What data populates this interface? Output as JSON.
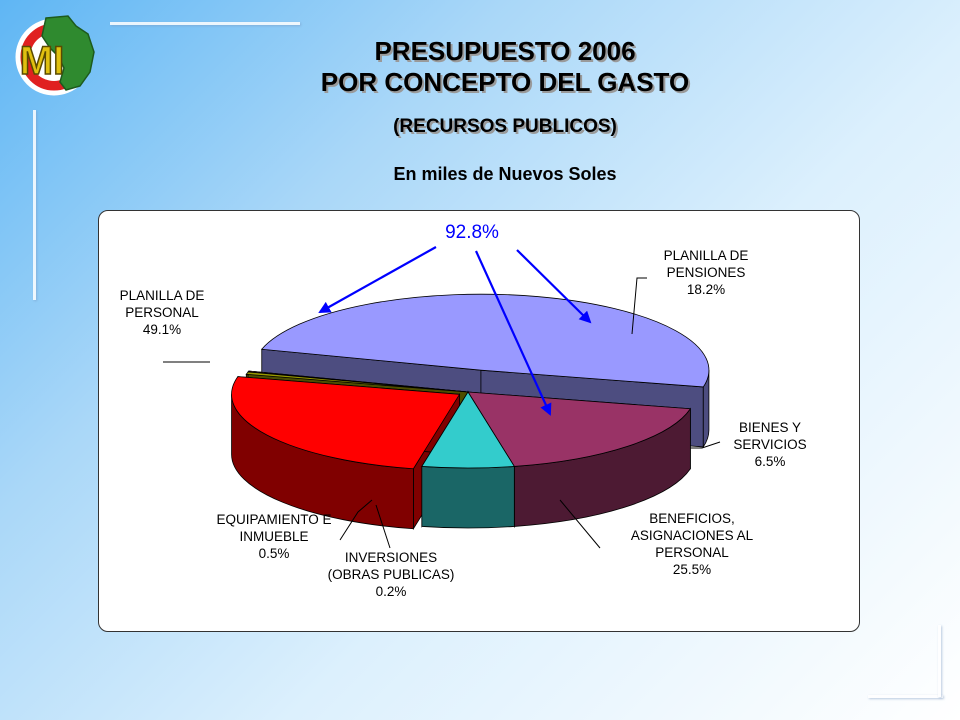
{
  "header": {
    "title_line1": "PRESUPUESTO 2006",
    "title_line2": "POR CONCEPTO DEL GASTO",
    "subtitle": "(RECURSOS PUBLICOS)",
    "units_note": "En miles de Nuevos Soles"
  },
  "logo": {
    "text": "MI"
  },
  "colors": {
    "personal": "#9999ff",
    "pensiones": "#993366",
    "bienes": "#33cccc",
    "beneficios": "#ff0000",
    "inversiones": "#ff9999",
    "equipamiento": "#999900",
    "highlight": "#0000ff"
  },
  "chart_data": {
    "type": "pie",
    "title": "PRESUPUESTO 2006 POR CONCEPTO DEL GASTO",
    "units": "En miles de Nuevos Soles",
    "slices": [
      {
        "key": "personal",
        "label": [
          "PLANILLA DE",
          "PERSONAL"
        ],
        "value": 49.1,
        "display": "49.1%",
        "exploded": true
      },
      {
        "key": "pensiones",
        "label": [
          "PLANILLA DE",
          "PENSIONES"
        ],
        "value": 18.2,
        "display": "18.2%"
      },
      {
        "key": "bienes",
        "label": [
          "BIENES Y",
          "SERVICIOS"
        ],
        "value": 6.5,
        "display": "6.5%"
      },
      {
        "key": "beneficios",
        "label": [
          "BENEFICIOS,",
          "ASIGNACIONES AL",
          "PERSONAL"
        ],
        "value": 25.5,
        "display": "25.5%"
      },
      {
        "key": "equipamiento",
        "label": [
          "EQUIPAMIENTO E",
          "INMUEBLE"
        ],
        "value": 0.5,
        "display": "0.5%"
      },
      {
        "key": "inversiones",
        "label": [
          "INVERSIONES",
          "(OBRAS PUBLICAS)"
        ],
        "value": 0.2,
        "display": "0.2%"
      }
    ],
    "annotation": {
      "text": "92.8%",
      "points_to": [
        "personal",
        "pensiones",
        "beneficios"
      ]
    }
  }
}
